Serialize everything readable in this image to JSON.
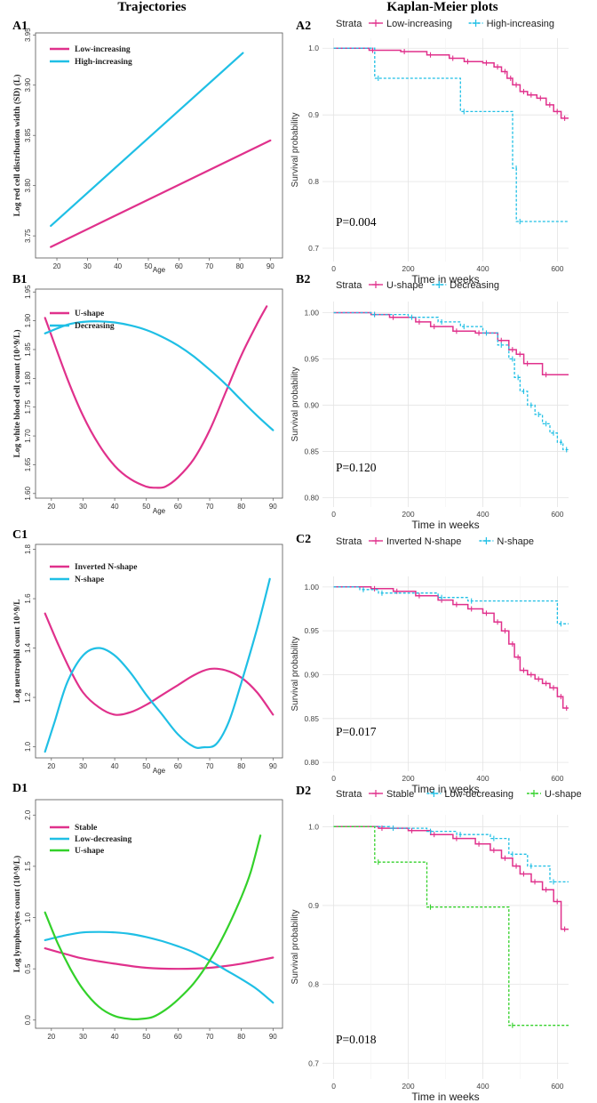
{
  "figure": {
    "col_left_title": "Trajectories",
    "col_right_title": "Kaplan-Meier plots"
  },
  "colors": {
    "magenta": "#E0318C",
    "cyan": "#1FBFE5",
    "green": "#33D12A",
    "grid": "#EBEBEB"
  },
  "chart_data": [
    {
      "id": "A1",
      "type": "line",
      "label": "A1",
      "xlabel": "Age",
      "ylabel": "Log red cell distribution width (SD) (L)",
      "xlim": [
        13,
        94
      ],
      "ylim": [
        3.728,
        3.952
      ],
      "xticks": [
        20,
        30,
        40,
        50,
        60,
        70,
        80,
        90
      ],
      "yticks": [
        3.75,
        3.8,
        3.85,
        3.9,
        3.95
      ],
      "series": [
        {
          "name": "Low-increasing",
          "color": "#E0318C",
          "x": [
            18,
            90
          ],
          "y": [
            3.739,
            3.845
          ]
        },
        {
          "name": "High-increasing",
          "color": "#1FBFE5",
          "x": [
            18,
            81
          ],
          "y": [
            3.76,
            3.932
          ]
        }
      ]
    },
    {
      "id": "A2",
      "type": "step",
      "label": "A2",
      "legend_title": "Strata",
      "xlabel": "Time in weeks",
      "ylabel": "Survival probability",
      "xlim": [
        -30,
        630
      ],
      "ylim": [
        0.68,
        1.015
      ],
      "xticks": [
        0,
        200,
        400,
        600
      ],
      "yticks": [
        0.7,
        0.8,
        0.9,
        1.0
      ],
      "pvalue": "P=0.004",
      "series": [
        {
          "name": "Low-increasing",
          "color": "#E0318C",
          "dashed": false,
          "x": [
            0,
            95,
            180,
            250,
            310,
            350,
            400,
            430,
            450,
            465,
            480,
            500,
            520,
            545,
            570,
            590,
            610,
            630
          ],
          "y": [
            1.0,
            0.997,
            0.995,
            0.99,
            0.985,
            0.98,
            0.978,
            0.972,
            0.965,
            0.955,
            0.945,
            0.935,
            0.93,
            0.925,
            0.915,
            0.905,
            0.895,
            0.895
          ]
        },
        {
          "name": "High-increasing",
          "color": "#1FBFE5",
          "dashed": true,
          "x": [
            0,
            110,
            340,
            480,
            490,
            630
          ],
          "y": [
            1.0,
            0.955,
            0.905,
            0.82,
            0.74,
            0.74
          ]
        }
      ]
    },
    {
      "id": "B1",
      "type": "line",
      "label": "B1",
      "xlabel": "Age",
      "ylabel": "Log white blood cell count (10^9/L)",
      "xlim": [
        15,
        93
      ],
      "ylim": [
        1.592,
        1.955
      ],
      "xticks": [
        20,
        30,
        40,
        50,
        60,
        70,
        80,
        90
      ],
      "yticks": [
        1.6,
        1.65,
        1.7,
        1.75,
        1.8,
        1.85,
        1.9,
        1.95
      ],
      "series": [
        {
          "name": "U-shape",
          "color": "#E0318C",
          "x": [
            18,
            25,
            30,
            35,
            40,
            45,
            50,
            53,
            56,
            60,
            65,
            70,
            75,
            80,
            85,
            88
          ],
          "y": [
            1.905,
            1.8,
            1.735,
            1.685,
            1.648,
            1.625,
            1.612,
            1.61,
            1.612,
            1.628,
            1.66,
            1.71,
            1.775,
            1.84,
            1.895,
            1.925
          ]
        },
        {
          "name": "Decreasing",
          "color": "#1FBFE5",
          "x": [
            18,
            25,
            30,
            35,
            40,
            45,
            50,
            55,
            60,
            65,
            70,
            75,
            80,
            85,
            90
          ],
          "y": [
            1.878,
            1.893,
            1.898,
            1.899,
            1.897,
            1.892,
            1.884,
            1.872,
            1.857,
            1.838,
            1.815,
            1.79,
            1.762,
            1.735,
            1.71
          ]
        }
      ]
    },
    {
      "id": "B2",
      "type": "step",
      "label": "B2",
      "legend_title": "Strata",
      "xlabel": "Time in weeks",
      "ylabel": "Survival probability",
      "xlim": [
        -30,
        630
      ],
      "ylim": [
        0.79,
        1.012
      ],
      "xticks": [
        0,
        200,
        400,
        600
      ],
      "yticks": [
        0.8,
        0.85,
        0.9,
        0.95,
        1.0
      ],
      "pvalue": "P=0.120",
      "series": [
        {
          "name": "U-shape",
          "color": "#E0318C",
          "dashed": false,
          "x": [
            0,
            100,
            150,
            220,
            260,
            320,
            380,
            440,
            470,
            490,
            510,
            560,
            630
          ],
          "y": [
            1.0,
            0.998,
            0.995,
            0.99,
            0.985,
            0.98,
            0.978,
            0.97,
            0.96,
            0.955,
            0.945,
            0.933,
            0.933
          ]
        },
        {
          "name": "Decreasing",
          "color": "#1FBFE5",
          "dashed": true,
          "x": [
            0,
            100,
            200,
            280,
            340,
            400,
            440,
            470,
            485,
            500,
            520,
            540,
            560,
            580,
            600,
            615,
            630
          ],
          "y": [
            1.0,
            0.998,
            0.995,
            0.99,
            0.985,
            0.978,
            0.965,
            0.95,
            0.93,
            0.915,
            0.9,
            0.89,
            0.88,
            0.87,
            0.86,
            0.852,
            0.852
          ]
        }
      ]
    },
    {
      "id": "C1",
      "type": "line",
      "label": "C1",
      "xlabel": "Age",
      "ylabel": "Log neutrophil count 10^9/L",
      "xlim": [
        15,
        93
      ],
      "ylim": [
        0.955,
        1.82
      ],
      "xticks": [
        20,
        30,
        40,
        50,
        60,
        70,
        80,
        90
      ],
      "yticks": [
        1.0,
        1.2,
        1.4,
        1.6,
        1.8
      ],
      "series": [
        {
          "name": "Inverted N-shape",
          "color": "#E0318C",
          "x": [
            18,
            22,
            26,
            30,
            35,
            40,
            45,
            50,
            55,
            60,
            65,
            70,
            75,
            80,
            85,
            90
          ],
          "y": [
            1.54,
            1.42,
            1.31,
            1.22,
            1.16,
            1.13,
            1.14,
            1.17,
            1.21,
            1.25,
            1.29,
            1.315,
            1.31,
            1.28,
            1.22,
            1.13
          ]
        },
        {
          "name": "N-shape",
          "color": "#1FBFE5",
          "x": [
            18,
            21,
            25,
            30,
            35,
            40,
            45,
            50,
            55,
            60,
            65,
            68,
            72,
            76,
            80,
            85,
            89
          ],
          "y": [
            0.98,
            1.1,
            1.26,
            1.37,
            1.4,
            1.37,
            1.3,
            1.21,
            1.13,
            1.05,
            1.0,
            0.998,
            1.01,
            1.1,
            1.26,
            1.48,
            1.68
          ]
        }
      ]
    },
    {
      "id": "C2",
      "type": "step",
      "label": "C2",
      "legend_title": "Strata",
      "xlabel": "Time in weeks",
      "ylabel": "Survival probability",
      "xlim": [
        -30,
        630
      ],
      "ylim": [
        0.79,
        1.012
      ],
      "xticks": [
        0,
        200,
        400,
        600
      ],
      "yticks": [
        0.8,
        0.85,
        0.9,
        0.95,
        1.0
      ],
      "pvalue": "P=0.017",
      "series": [
        {
          "name": "Inverted N-shape",
          "color": "#E0318C",
          "dashed": false,
          "x": [
            0,
            100,
            160,
            220,
            280,
            320,
            360,
            400,
            430,
            450,
            470,
            485,
            500,
            520,
            540,
            560,
            580,
            600,
            615,
            630
          ],
          "y": [
            1.0,
            0.998,
            0.995,
            0.99,
            0.985,
            0.98,
            0.975,
            0.97,
            0.96,
            0.95,
            0.935,
            0.92,
            0.905,
            0.9,
            0.895,
            0.89,
            0.885,
            0.875,
            0.862,
            0.862
          ]
        },
        {
          "name": "N-shape",
          "color": "#1FBFE5",
          "dashed": true,
          "x": [
            0,
            70,
            120,
            280,
            360,
            600,
            630
          ],
          "y": [
            1.0,
            0.997,
            0.993,
            0.988,
            0.984,
            0.958,
            0.958
          ]
        }
      ]
    },
    {
      "id": "D1",
      "type": "line",
      "label": "D1",
      "xlabel": "",
      "ylabel": "Log lymphocytes count (10^9/L)",
      "xlim": [
        15,
        93
      ],
      "ylim": [
        -0.08,
        2.15
      ],
      "xticks": [
        20,
        30,
        40,
        50,
        60,
        70,
        80,
        90
      ],
      "yticks": [
        0.0,
        0.5,
        1.0,
        1.5,
        2.0
      ],
      "series": [
        {
          "name": "Stable",
          "color": "#E0318C",
          "x": [
            18,
            25,
            30,
            40,
            50,
            60,
            70,
            80,
            90
          ],
          "y": [
            0.7,
            0.64,
            0.6,
            0.55,
            0.51,
            0.5,
            0.51,
            0.55,
            0.61
          ]
        },
        {
          "name": "Low-decreasing",
          "color": "#1FBFE5",
          "x": [
            18,
            25,
            30,
            35,
            40,
            45,
            50,
            55,
            60,
            65,
            70,
            75,
            80,
            85,
            90
          ],
          "y": [
            0.78,
            0.83,
            0.855,
            0.86,
            0.855,
            0.84,
            0.81,
            0.77,
            0.72,
            0.66,
            0.58,
            0.49,
            0.4,
            0.3,
            0.17
          ]
        },
        {
          "name": "U-shape",
          "color": "#33D12A",
          "x": [
            18,
            22,
            26,
            30,
            35,
            40,
            45,
            48,
            52,
            56,
            60,
            65,
            70,
            75,
            80,
            83,
            86
          ],
          "y": [
            1.05,
            0.75,
            0.5,
            0.3,
            0.13,
            0.04,
            0.01,
            0.01,
            0.03,
            0.1,
            0.2,
            0.36,
            0.58,
            0.86,
            1.2,
            1.45,
            1.8
          ]
        }
      ]
    },
    {
      "id": "D2",
      "type": "step",
      "label": "D2",
      "legend_title": "Strata",
      "xlabel": "Time in weeks",
      "ylabel": "Survival probability",
      "xlim": [
        -30,
        630
      ],
      "ylim": [
        0.68,
        1.015
      ],
      "xticks": [
        0,
        200,
        400,
        600
      ],
      "yticks": [
        0.7,
        0.8,
        0.9,
        1.0
      ],
      "pvalue": "P=0.018",
      "series": [
        {
          "name": "Stable",
          "color": "#E0318C",
          "dashed": false,
          "x": [
            0,
            120,
            200,
            260,
            320,
            380,
            420,
            450,
            480,
            500,
            530,
            560,
            590,
            610,
            630
          ],
          "y": [
            1.0,
            0.998,
            0.995,
            0.99,
            0.985,
            0.978,
            0.97,
            0.96,
            0.95,
            0.94,
            0.93,
            0.92,
            0.905,
            0.87,
            0.87
          ]
        },
        {
          "name": "Low-decreasing",
          "color": "#1FBFE5",
          "dashed": true,
          "x": [
            0,
            150,
            250,
            330,
            420,
            470,
            520,
            580,
            630
          ],
          "y": [
            1.0,
            0.998,
            0.994,
            0.99,
            0.985,
            0.965,
            0.95,
            0.93,
            0.93
          ]
        },
        {
          "name": "U-shape",
          "color": "#33D12A",
          "dashed": true,
          "x": [
            0,
            110,
            250,
            470,
            630
          ],
          "y": [
            1.0,
            0.955,
            0.898,
            0.748,
            0.748
          ]
        }
      ]
    }
  ]
}
